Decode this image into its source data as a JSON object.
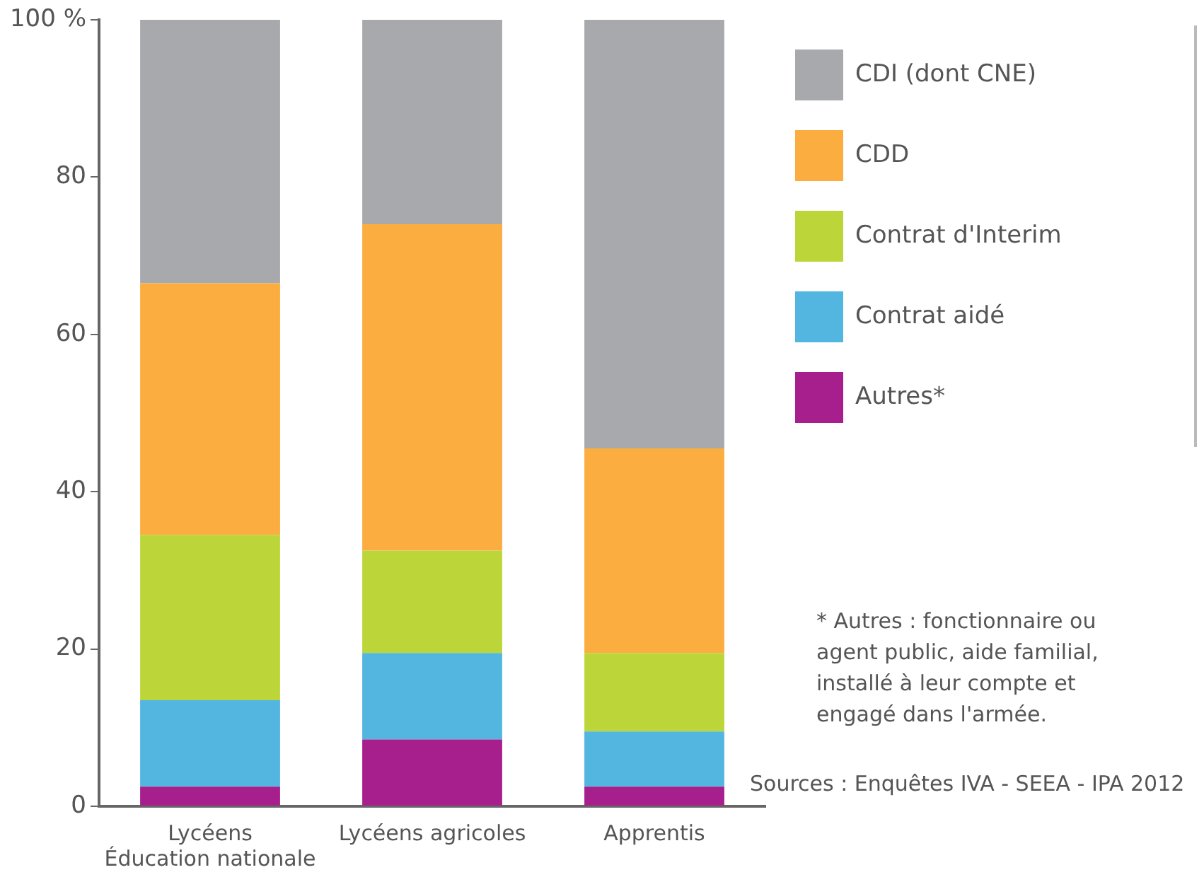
{
  "chart_data": {
    "type": "bar",
    "stacked": true,
    "categories": [
      "Lycéens\nÉducation nationale",
      "Lycéens agricoles",
      "Apprentis"
    ],
    "series": [
      {
        "name": "Autres*",
        "color": "#a71f8c",
        "values": [
          2.5,
          8.5,
          2.5
        ]
      },
      {
        "name": "Contrat aidé",
        "color": "#52b6e0",
        "values": [
          11,
          11,
          7
        ]
      },
      {
        "name": "Contrat d'Interim",
        "color": "#bcd63a",
        "values": [
          21,
          13,
          10
        ]
      },
      {
        "name": "CDD",
        "color": "#fbad40",
        "values": [
          32,
          41.5,
          26
        ]
      },
      {
        "name": "CDI (dont CNE)",
        "color": "#a8a9ad",
        "values": [
          33.5,
          26,
          54.5
        ]
      }
    ],
    "ylim": [
      0,
      100
    ],
    "yticks": [
      0,
      20,
      40,
      60,
      80,
      {
        "value": 100,
        "label": "100 %"
      }
    ],
    "grid": false,
    "legend": "right",
    "annotations": [
      "* Autres : fonctionnaire ou agent public, aide familial, installé à leur compte et engagé dans l'armée.",
      "Sources : Enquêtes IVA - SEEA - IPA 2012"
    ]
  }
}
